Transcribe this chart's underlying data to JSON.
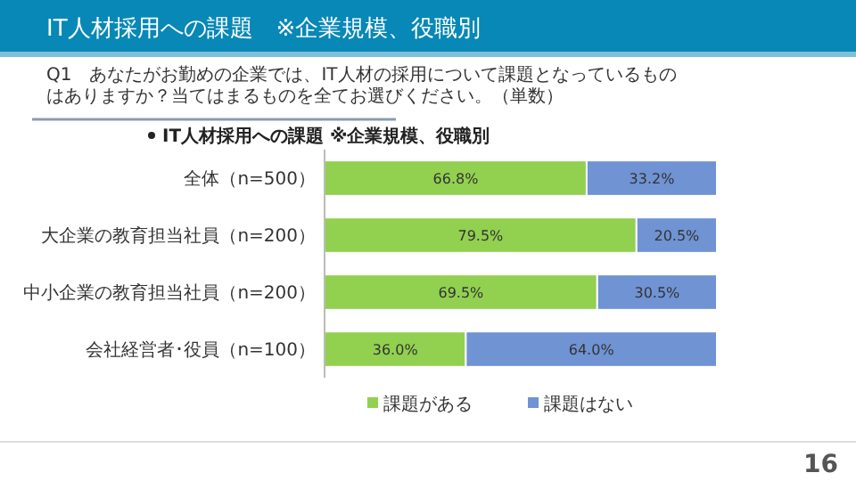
{
  "chart_data": {
    "type": "bar",
    "orientation": "horizontal",
    "stacked": true,
    "title": "IT人材採用への課題　※企業規模、役職別",
    "subtitle": "Q1　あなたがお勤めの企業では、IT人材の採用について課題となっているものはありますか？当てはまるものを全てお選びください。（単数）",
    "annotations": [
      "IT人材採用への課題 ※企業規模、役職別",
      "16"
    ],
    "categories": [
      "全体（n=500）",
      "大企業の教育担当社員（n=200）",
      "中小企業の教育担当社員（n=200）",
      "会社経営者･役員（n=100）"
    ],
    "series": [
      {
        "name": "課題がある",
        "color": "#92d050",
        "values": [
          66.8,
          79.5,
          69.5,
          36.0
        ],
        "value_labels": [
          "66.8%",
          "79.5%",
          "69.5%",
          "36.0%"
        ]
      },
      {
        "name": "課題はない",
        "color": "#6f93d3",
        "values": [
          33.2,
          20.5,
          30.5,
          64.0
        ],
        "value_labels": [
          "33.2%",
          "20.5%",
          "30.5%",
          "64.0%"
        ]
      }
    ],
    "tick_labels": "y",
    "legend": "bottom"
  }
}
